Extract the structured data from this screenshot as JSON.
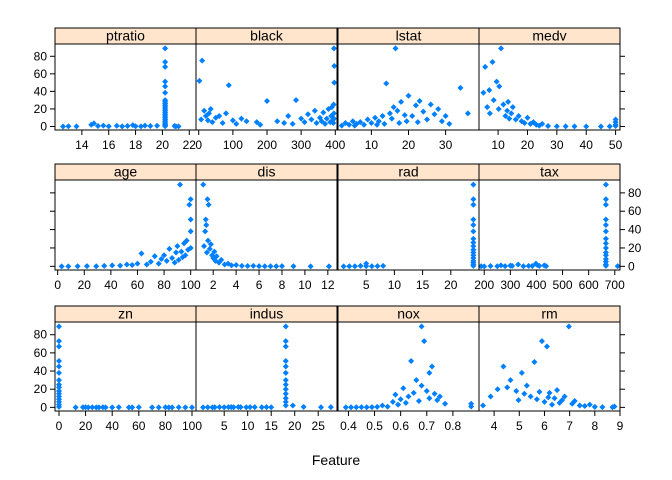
{
  "chart_data": {
    "type": "scatter",
    "xlabel": "Feature",
    "ylabel": "",
    "ylim": [
      -4,
      94
    ],
    "y_ticks": [
      0,
      20,
      40,
      60,
      80
    ],
    "y_tick_labels": [
      "0",
      "20",
      "40",
      "60",
      "80"
    ],
    "point_color": "#0080ff",
    "strip_color": "#ffe5cc",
    "panels": [
      {
        "name": "ptratio",
        "row": 0,
        "col": 0,
        "xlim": [
          12.0,
          22.5
        ],
        "x_ticks": [
          14,
          16,
          18,
          20,
          22
        ],
        "x_tick_labels": [
          "14",
          "16",
          "18",
          "20",
          "22"
        ],
        "x": [
          12.6,
          13.0,
          13.6,
          14.7,
          14.9,
          15.2,
          15.6,
          16.0,
          16.6,
          17.0,
          17.4,
          17.8,
          18.0,
          18.4,
          18.7,
          19.1,
          19.6,
          20.2,
          20.2,
          20.2,
          20.2,
          20.2,
          20.2,
          20.2,
          20.2,
          20.2,
          20.2,
          20.2,
          20.2,
          20.2,
          20.2,
          20.2,
          20.2,
          20.2,
          20.2,
          20.2,
          20.2,
          20.2,
          20.2,
          20.2,
          20.9,
          21.0,
          21.2
        ],
        "y": [
          0.0,
          0.3,
          0.1,
          2.0,
          3.5,
          0.5,
          1.0,
          0.2,
          0.8,
          0.1,
          0.5,
          1.5,
          0.3,
          0.2,
          1.0,
          0.5,
          0.8,
          89.0,
          73.5,
          67.9,
          51.1,
          45.7,
          38.4,
          30.0,
          28.0,
          26.0,
          24.0,
          22.0,
          20.0,
          18.0,
          16.0,
          14.0,
          12.0,
          10.0,
          8.0,
          6.0,
          4.0,
          2.5,
          1.2,
          0.3,
          0.5,
          0.2,
          0.1
        ]
      },
      {
        "name": "black",
        "row": 0,
        "col": 1,
        "xlim": [
          -8,
          405
        ],
        "x_ticks": [
          0,
          100,
          200,
          300,
          400
        ],
        "x_tick_labels": [
          "0",
          "100",
          "200",
          "300",
          "400"
        ],
        "x": [
          2,
          7,
          10,
          16,
          21,
          27,
          30,
          35,
          40,
          50,
          60,
          70,
          80,
          88,
          100,
          110,
          125,
          140,
          170,
          180,
          200,
          230,
          250,
          262,
          275,
          285,
          300,
          310,
          320,
          330,
          340,
          345,
          355,
          360,
          365,
          370,
          375,
          380,
          385,
          388,
          390,
          392,
          394,
          395,
          396,
          396,
          396,
          397,
          397
        ],
        "y": [
          52,
          8,
          75,
          18,
          12,
          7,
          15,
          20,
          5,
          10,
          12,
          4,
          15,
          47,
          7,
          3,
          9,
          6,
          5,
          2,
          29,
          6,
          4,
          12,
          3,
          30,
          9,
          5,
          14,
          8,
          18,
          4,
          10,
          6,
          16,
          3,
          9,
          20,
          5,
          12,
          22,
          7,
          4,
          25,
          15,
          9,
          89,
          69,
          50
        ]
      },
      {
        "name": "lstat",
        "row": 0,
        "col": 2,
        "xlim": [
          1,
          39
        ],
        "x_ticks": [
          10,
          20,
          30
        ],
        "x_tick_labels": [
          "10",
          "20",
          "30"
        ],
        "x": [
          2,
          3,
          4,
          5,
          5.5,
          6,
          7,
          8,
          9,
          10,
          11,
          11.5,
          12,
          13,
          13.5,
          14,
          15,
          15.5,
          16,
          16.5,
          17,
          17.5,
          18,
          19,
          19.5,
          20,
          21,
          22,
          22.5,
          23,
          24,
          25,
          26,
          27,
          28,
          29,
          30,
          31,
          34,
          36
        ],
        "y": [
          1,
          4,
          2,
          6,
          1,
          3,
          5,
          2,
          8,
          4,
          10,
          2,
          6,
          12,
          3,
          49,
          15,
          9,
          22,
          89,
          18,
          4,
          28,
          13,
          6,
          35,
          12,
          24,
          5,
          29,
          17,
          8,
          25,
          14,
          20,
          6,
          12,
          3,
          44,
          15
        ]
      },
      {
        "name": "medv",
        "row": 0,
        "col": 3,
        "xlim": [
          3.5,
          51.5
        ],
        "x_ticks": [
          10,
          20,
          30,
          40,
          50
        ],
        "x_tick_labels": [
          "10",
          "20",
          "30",
          "40",
          "50"
        ],
        "x": [
          5.0,
          5.6,
          6.3,
          7.0,
          7.2,
          8.1,
          8.5,
          9.5,
          10.2,
          10.4,
          11.0,
          11.8,
          12.5,
          13.1,
          13.4,
          13.8,
          14.5,
          15.0,
          16.0,
          17.0,
          18.0,
          19.0,
          20.0,
          21.0,
          22.0,
          23.0,
          24.0,
          25.0,
          27.0,
          30.0,
          33.0,
          36.0,
          40.0,
          45.0,
          48.0,
          50.0,
          50.0,
          50.0,
          50.0
        ],
        "y": [
          38.4,
          67.9,
          22.0,
          41.5,
          15.0,
          73.5,
          30.0,
          51.1,
          20.0,
          45.7,
          89.0,
          25.0,
          12.0,
          18.0,
          28.0,
          9.0,
          15.0,
          22.0,
          8.0,
          12.0,
          6.0,
          4.0,
          10.0,
          3.0,
          5.0,
          2.0,
          1.0,
          3.0,
          0.5,
          0.2,
          0.1,
          0.1,
          0.0,
          0.0,
          0.1,
          8.0,
          5.0,
          2.0,
          0.5
        ]
      },
      {
        "name": "age",
        "row": 1,
        "col": 0,
        "xlim": [
          -2,
          104
        ],
        "x_ticks": [
          0,
          20,
          40,
          60,
          80,
          100
        ],
        "x_tick_labels": [
          "0",
          "20",
          "40",
          "60",
          "80",
          "100"
        ],
        "x": [
          3,
          8,
          15,
          22,
          29,
          35,
          41,
          47,
          52,
          56,
          60,
          63,
          67,
          70,
          73,
          76,
          78,
          80,
          82,
          84,
          86,
          88,
          89,
          90,
          91,
          92,
          93,
          94,
          95,
          96,
          97,
          98,
          99,
          100,
          100,
          100,
          100
        ],
        "y": [
          0,
          0,
          0.1,
          0.2,
          0.1,
          0.5,
          1,
          0.8,
          2,
          1.5,
          3,
          14,
          2,
          5,
          11,
          3,
          8,
          12,
          6,
          19,
          9,
          4,
          15,
          22,
          7,
          89,
          16,
          10,
          25,
          12,
          28,
          18,
          67,
          73,
          51,
          38,
          20
        ]
      },
      {
        "name": "dis",
        "row": 1,
        "col": 1,
        "xlim": [
          0.5,
          12.8
        ],
        "x_ticks": [
          2,
          4,
          6,
          8,
          10,
          12
        ],
        "x_tick_labels": [
          "2",
          "4",
          "6",
          "8",
          "10",
          "12"
        ],
        "x": [
          1.13,
          1.2,
          1.3,
          1.35,
          1.4,
          1.45,
          1.5,
          1.55,
          1.6,
          1.7,
          1.8,
          1.9,
          2.0,
          2.1,
          2.2,
          2.3,
          2.5,
          2.7,
          3.0,
          3.3,
          3.6,
          4.0,
          4.5,
          5.0,
          5.5,
          6.0,
          6.5,
          7.0,
          7.5,
          8.0,
          9.0,
          10.5,
          12.1
        ],
        "y": [
          89,
          22,
          38,
          51,
          45,
          15,
          73,
          28,
          67,
          19,
          24,
          12,
          9,
          16,
          6,
          11,
          4,
          7,
          2,
          3,
          1,
          1.5,
          0.5,
          0.3,
          0.5,
          0.2,
          0.1,
          0.1,
          0.1,
          0.2,
          0.1,
          0.0,
          0.0
        ]
      },
      {
        "name": "rad",
        "row": 1,
        "col": 2,
        "xlim": [
          0,
          25
        ],
        "x_ticks": [
          5,
          10,
          15,
          20
        ],
        "x_tick_labels": [
          "5",
          "10",
          "15",
          "20"
        ],
        "x": [
          1,
          2,
          3,
          4,
          5,
          5,
          6,
          7,
          8,
          24,
          24,
          24,
          24,
          24,
          24,
          24,
          24,
          24,
          24,
          24,
          24,
          24,
          24,
          24,
          24,
          24
        ],
        "y": [
          0.0,
          0.1,
          0.1,
          0.5,
          3.0,
          0.2,
          0.1,
          0.2,
          0.5,
          89,
          73,
          67,
          51,
          45,
          38,
          30,
          26,
          22,
          18,
          15,
          12,
          9,
          6,
          4,
          2,
          0.5
        ]
      },
      {
        "name": "tax",
        "row": 1,
        "col": 3,
        "xlim": [
          180,
          720
        ],
        "x_ticks": [
          200,
          300,
          400,
          500,
          600,
          700
        ],
        "x_tick_labels": [
          "200",
          "300",
          "400",
          "500",
          "600",
          "700"
        ],
        "x": [
          188,
          200,
          224,
          250,
          264,
          280,
          300,
          307,
          330,
          350,
          370,
          384,
          398,
          403,
          411,
          430,
          437,
          666,
          666,
          666,
          666,
          666,
          666,
          666,
          666,
          666,
          666,
          666,
          666,
          666,
          666,
          666,
          711
        ],
        "y": [
          0.1,
          0.0,
          0.3,
          0.1,
          1.0,
          0.2,
          0.8,
          0.5,
          2.0,
          0.1,
          0.5,
          0.3,
          3.0,
          1.5,
          0.5,
          1.0,
          0.2,
          89,
          73,
          67,
          51,
          45,
          38,
          30,
          25,
          20,
          15,
          12,
          8,
          5,
          2,
          0.5,
          0.2
        ]
      },
      {
        "name": "zn",
        "row": 2,
        "col": 0,
        "xlim": [
          -3,
          103
        ],
        "x_ticks": [
          0,
          20,
          40,
          60,
          80,
          100
        ],
        "x_tick_labels": [
          "0",
          "20",
          "40",
          "60",
          "80",
          "100"
        ],
        "x": [
          0,
          0,
          0,
          0,
          0,
          0,
          0,
          0,
          0,
          0,
          0,
          0,
          0,
          0,
          0,
          0,
          12.5,
          18,
          20,
          22,
          25,
          28,
          30,
          33,
          35,
          40,
          45,
          52.5,
          55,
          60,
          70,
          75,
          80,
          82.5,
          85,
          90,
          95,
          100
        ],
        "y": [
          89,
          73,
          67,
          51,
          45,
          38,
          30,
          25,
          22,
          18,
          15,
          12,
          9,
          6,
          3,
          0.5,
          0.0,
          0.1,
          0.1,
          0.0,
          0.1,
          0.0,
          0.0,
          0.1,
          0.0,
          0.0,
          0.1,
          0.0,
          0.0,
          0.1,
          0.0,
          0.0,
          0.1,
          0.0,
          0.0,
          0.1,
          0.0,
          0.0
        ]
      },
      {
        "name": "indus",
        "row": 2,
        "col": 1,
        "xlim": [
          -1,
          29
        ],
        "x_ticks": [
          5,
          10,
          15,
          20,
          25
        ],
        "x_tick_labels": [
          "5",
          "10",
          "15",
          "20",
          "25"
        ],
        "x": [
          0.5,
          1.5,
          2.5,
          3.0,
          4.0,
          5.0,
          5.9,
          6.5,
          7.0,
          8.0,
          8.5,
          9.7,
          10.5,
          11.5,
          13.0,
          14.0,
          15.0,
          18.1,
          18.1,
          18.1,
          18.1,
          18.1,
          18.1,
          18.1,
          18.1,
          18.1,
          18.1,
          18.1,
          18.1,
          18.1,
          19.6,
          21.9,
          25.6,
          27.7
        ],
        "y": [
          0.0,
          0.1,
          0.0,
          0.1,
          0.2,
          0.1,
          0.3,
          0.2,
          0.1,
          0.4,
          0.2,
          0.1,
          0.3,
          0.2,
          0.1,
          0.2,
          0.1,
          89,
          73,
          67,
          51,
          45,
          38,
          30,
          25,
          20,
          15,
          10,
          6,
          2,
          2.0,
          0.5,
          0.1,
          0.2
        ]
      },
      {
        "name": "nox",
        "row": 2,
        "col": 2,
        "xlim": [
          0.36,
          0.9
        ],
        "x_ticks": [
          0.4,
          0.5,
          0.6,
          0.7,
          0.8
        ],
        "x_tick_labels": [
          "0.4",
          "0.5",
          "0.6",
          "0.7",
          "0.8"
        ],
        "x": [
          0.39,
          0.41,
          0.43,
          0.45,
          0.47,
          0.49,
          0.51,
          0.53,
          0.55,
          0.57,
          0.58,
          0.59,
          0.6,
          0.61,
          0.62,
          0.63,
          0.64,
          0.65,
          0.66,
          0.67,
          0.68,
          0.68,
          0.69,
          0.7,
          0.71,
          0.71,
          0.72,
          0.73,
          0.74,
          0.75,
          0.77,
          0.87,
          0.87
        ],
        "y": [
          0.0,
          0.1,
          0.1,
          0.2,
          0.1,
          0.3,
          0.5,
          2,
          0.8,
          6,
          14,
          3,
          9,
          21,
          5,
          12,
          51,
          16,
          30,
          7,
          89,
          24,
          73,
          18,
          10,
          38,
          45,
          15,
          8,
          12,
          4,
          4,
          1
        ]
      },
      {
        "name": "rm",
        "row": 2,
        "col": 3,
        "xlim": [
          3.4,
          9.0
        ],
        "x_ticks": [
          4,
          5,
          6,
          7,
          8,
          9
        ],
        "x_tick_labels": [
          "4",
          "5",
          "6",
          "7",
          "8",
          "9"
        ],
        "x": [
          3.56,
          3.86,
          4.14,
          4.37,
          4.52,
          4.65,
          4.88,
          4.97,
          5.1,
          5.2,
          5.3,
          5.45,
          5.6,
          5.7,
          5.8,
          5.9,
          6.0,
          6.1,
          6.15,
          6.2,
          6.3,
          6.4,
          6.5,
          6.6,
          6.7,
          6.8,
          6.97,
          7.1,
          7.2,
          7.4,
          7.6,
          7.8,
          8.0,
          8.3,
          8.7,
          8.78
        ],
        "y": [
          2,
          12,
          20,
          45,
          22,
          30,
          18,
          8,
          38,
          15,
          24,
          12,
          50,
          9,
          17,
          73,
          6,
          67,
          11,
          16,
          3,
          10,
          19,
          5,
          8,
          12,
          89,
          4,
          7,
          2,
          1.5,
          3,
          0.5,
          0.2,
          0.1,
          1.0
        ]
      }
    ]
  }
}
